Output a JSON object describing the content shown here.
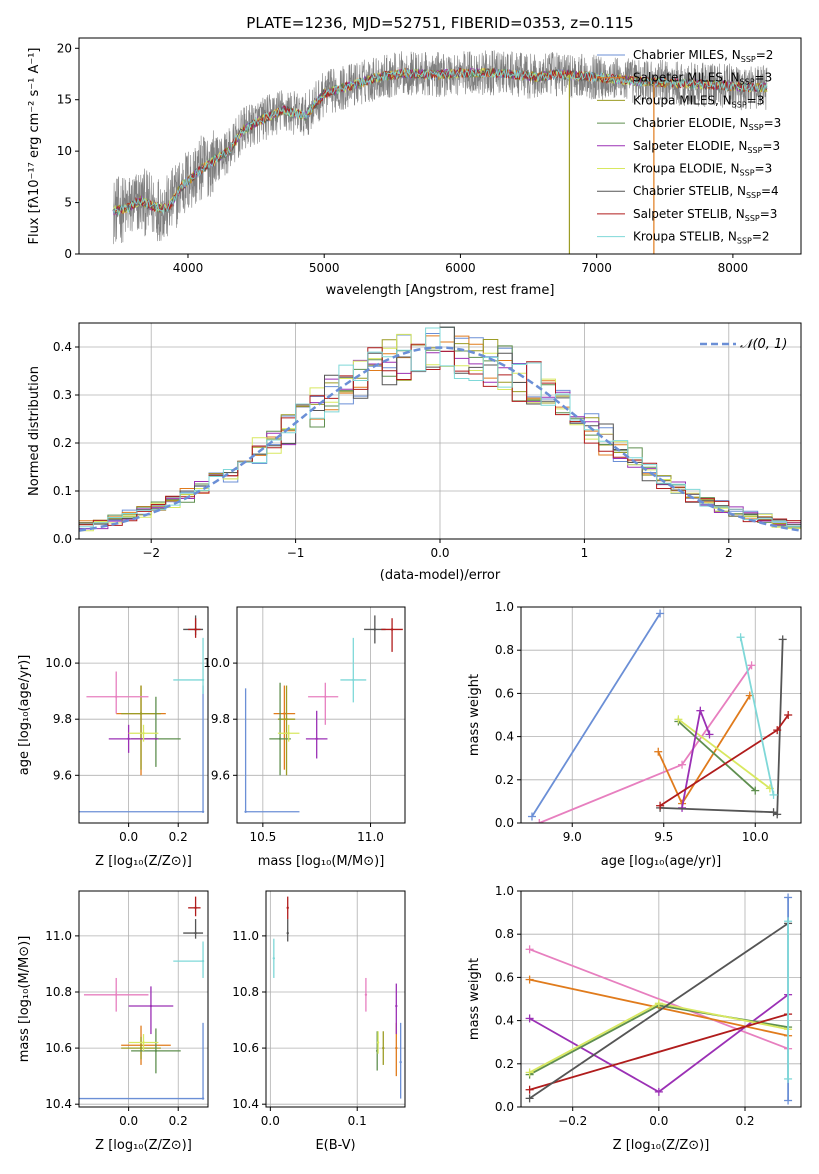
{
  "figure": {
    "title": "PLATE=1236, MJD=52751, FIBERID=0353, z=0.115",
    "colors": {
      "Chabrier MILES": "#6b8fd6",
      "Salpeter MILES": "#e07b1c",
      "Kroupa MILES": "#9c9c25",
      "Chabrier ELODIE": "#5f8f4f",
      "Salpeter ELODIE": "#9b30b5",
      "Kroupa ELODIE": "#d8e860",
      "Chabrier STELIB": "#555555",
      "Salpeter STELIB": "#b01c1c",
      "Kroupa STELIB": "#7fd8d8",
      "pink": "#e77fbf",
      "lime": "#b5e34d",
      "gaussian": "#6b8fd6"
    }
  },
  "chart_data": [
    {
      "id": "spectrum",
      "type": "line",
      "xlabel": "wavelength [Angstrom, rest frame]",
      "ylabel": "Flux [fλ10⁻¹⁷ erg cm⁻² s⁻¹ A⁻¹]",
      "xlim": [
        3200,
        8500
      ],
      "ylim": [
        0,
        21
      ],
      "xticks": [
        4000,
        5000,
        6000,
        7000,
        8000
      ],
      "yticks": [
        0,
        5,
        10,
        15,
        20
      ],
      "grid": false,
      "legend_position": "right",
      "legend": [
        {
          "label": "Chabrier MILES, N_SSP=2",
          "text": "Chabrier MILES, N",
          "sub": "SSP",
          "tail": "=2"
        },
        {
          "label": "Salpeter MILES, N_SSP=3",
          "text": "Salpeter MILES, N",
          "sub": "SSP",
          "tail": "=3"
        },
        {
          "label": "Kroupa MILES, N_SSP=3",
          "text": "Kroupa MILES, N",
          "sub": "SSP",
          "tail": "=3"
        },
        {
          "label": "Chabrier ELODIE, N_SSP=3",
          "text": "Chabrier ELODIE, N",
          "sub": "SSP",
          "tail": "=3"
        },
        {
          "label": "Salpeter ELODIE, N_SSP=3",
          "text": "Salpeter ELODIE, N",
          "sub": "SSP",
          "tail": "=3"
        },
        {
          "label": "Kroupa ELODIE, N_SSP=3",
          "text": "Kroupa ELODIE, N",
          "sub": "SSP",
          "tail": "=3"
        },
        {
          "label": "Chabrier STELIB, N_SSP=4",
          "text": "Chabrier STELIB, N",
          "sub": "SSP",
          "tail": "=4"
        },
        {
          "label": "Salpeter STELIB, N_SSP=3",
          "text": "Salpeter STELIB, N",
          "sub": "SSP",
          "tail": "=3"
        },
        {
          "label": "Kroupa STELIB, N_SSP=2",
          "text": "Kroupa STELIB, N",
          "sub": "SSP",
          "tail": "=2"
        }
      ],
      "continuum": [
        [
          3450,
          4.2
        ],
        [
          3550,
          4.4
        ],
        [
          3650,
          5.2
        ],
        [
          3750,
          4.6
        ],
        [
          3850,
          4.4
        ],
        [
          3950,
          6.5
        ],
        [
          4100,
          8.3
        ],
        [
          4300,
          10.0
        ],
        [
          4400,
          12.0
        ],
        [
          4500,
          12.8
        ],
        [
          4700,
          14.0
        ],
        [
          4860,
          13.4
        ],
        [
          5000,
          15.6
        ],
        [
          5200,
          16.4
        ],
        [
          5400,
          17.2
        ],
        [
          5600,
          17.6
        ],
        [
          5800,
          17.4
        ],
        [
          6000,
          17.6
        ],
        [
          6300,
          17.6
        ],
        [
          6563,
          17.2
        ],
        [
          6700,
          17.5
        ],
        [
          7000,
          17.2
        ],
        [
          7300,
          16.8
        ],
        [
          7600,
          16.6
        ],
        [
          7900,
          16.4
        ],
        [
          8100,
          16.2
        ],
        [
          8250,
          16.2
        ]
      ],
      "noise_amplitude": 2.2,
      "dropout_lines": [
        {
          "x": 6800,
          "series": "Kroupa MILES"
        },
        {
          "x": 7420,
          "series": "Salpeter MILES"
        }
      ]
    },
    {
      "id": "residuals",
      "type": "histogram",
      "xlabel": "(data-model)/error",
      "ylabel": "Normed distribution",
      "xlim": [
        -2.5,
        2.5
      ],
      "ylim": [
        0,
        0.45
      ],
      "xticks": [
        -2,
        -1,
        0,
        1,
        2
      ],
      "yticks": [
        0.0,
        0.1,
        0.2,
        0.3,
        0.4
      ],
      "grid": true,
      "legend": [
        "𝒩(0, 1)"
      ],
      "legend_position": "top-right",
      "gaussian": {
        "mean": 0,
        "sigma": 1
      },
      "bin_width": 0.1
    },
    {
      "id": "age_vs_Z",
      "type": "errorbar",
      "xlabel": "Z [log₁₀(Z/Z⊙)]",
      "ylabel": "age  [log₁₀(age/yr)]",
      "xlim": [
        -0.2,
        0.32
      ],
      "ylim": [
        9.43,
        10.2
      ],
      "xticks": [
        0.0,
        0.2
      ],
      "yticks": [
        9.6,
        9.8,
        10.0
      ],
      "grid": true,
      "points": [
        {
          "s": "Chabrier MILES",
          "x": 0.3,
          "y": 9.47,
          "xe": [
            0.5,
            0.0
          ],
          "ye": [
            0.0,
            0.45
          ]
        },
        {
          "s": "Salpeter MILES",
          "x": 0.05,
          "y": 9.82,
          "xe": [
            0.1,
            0.1
          ],
          "ye": [
            0.22,
            0.1
          ]
        },
        {
          "s": "Kroupa MILES",
          "x": 0.05,
          "y": 9.82,
          "xe": [
            0.08,
            0.08
          ],
          "ye": [
            0.2,
            0.1
          ]
        },
        {
          "s": "Chabrier ELODIE",
          "x": 0.11,
          "y": 9.73,
          "xe": [
            0.1,
            0.1
          ],
          "ye": [
            0.1,
            0.15
          ]
        },
        {
          "s": "Salpeter ELODIE",
          "x": 0.0,
          "y": 9.73,
          "xe": [
            0.08,
            0.12
          ],
          "ye": [
            0.05,
            0.05
          ]
        },
        {
          "s": "Kroupa ELODIE",
          "x": 0.06,
          "y": 9.75,
          "xe": [
            0.06,
            0.06
          ],
          "ye": [
            0.03,
            0.03
          ]
        },
        {
          "s": "Chabrier STELIB",
          "x": 0.27,
          "y": 10.12,
          "xe": [
            0.05,
            0.03
          ],
          "ye": [
            0.02,
            0.05
          ]
        },
        {
          "s": "Salpeter STELIB",
          "x": 0.27,
          "y": 10.12,
          "xe": [
            0.03,
            0.02
          ],
          "ye": [
            0.03,
            0.04
          ]
        },
        {
          "s": "Kroupa STELIB",
          "x": 0.3,
          "y": 9.94,
          "xe": [
            0.12,
            0.0
          ],
          "ye": [
            0.05,
            0.15
          ]
        },
        {
          "s": "pink",
          "x": -0.05,
          "y": 9.88,
          "xe": [
            0.12,
            0.13
          ],
          "ye": [
            0.06,
            0.09
          ]
        }
      ]
    },
    {
      "id": "age_vs_mass",
      "type": "errorbar",
      "xlabel": "mass [log₁₀(M/M⊙)]",
      "ylabel": "",
      "xlim": [
        10.38,
        11.16
      ],
      "ylim": [
        9.43,
        10.2
      ],
      "xticks": [
        10.5,
        11.0
      ],
      "yticks": [
        9.6,
        9.8,
        10.0
      ],
      "grid": true,
      "points": [
        {
          "s": "Chabrier MILES",
          "x": 10.42,
          "y": 9.47,
          "xe": [
            0.0,
            0.25
          ],
          "ye": [
            0.0,
            0.44
          ]
        },
        {
          "s": "Salpeter MILES",
          "x": 10.6,
          "y": 9.82,
          "xe": [
            0.05,
            0.05
          ],
          "ye": [
            0.2,
            0.1
          ]
        },
        {
          "s": "Kroupa MILES",
          "x": 10.61,
          "y": 9.8,
          "xe": [
            0.04,
            0.04
          ],
          "ye": [
            0.2,
            0.12
          ]
        },
        {
          "s": "Chabrier ELODIE",
          "x": 10.58,
          "y": 9.73,
          "xe": [
            0.05,
            0.05
          ],
          "ye": [
            0.13,
            0.2
          ]
        },
        {
          "s": "Salpeter ELODIE",
          "x": 10.75,
          "y": 9.73,
          "xe": [
            0.05,
            0.05
          ],
          "ye": [
            0.07,
            0.1
          ]
        },
        {
          "s": "Kroupa ELODIE",
          "x": 10.62,
          "y": 9.75,
          "xe": [
            0.05,
            0.05
          ],
          "ye": [
            0.03,
            0.03
          ]
        },
        {
          "s": "Chabrier STELIB",
          "x": 11.02,
          "y": 10.12,
          "xe": [
            0.05,
            0.05
          ],
          "ye": [
            0.05,
            0.05
          ]
        },
        {
          "s": "Salpeter STELIB",
          "x": 11.1,
          "y": 10.12,
          "xe": [
            0.05,
            0.05
          ],
          "ye": [
            0.08,
            0.04
          ]
        },
        {
          "s": "Kroupa STELIB",
          "x": 10.92,
          "y": 9.94,
          "xe": [
            0.06,
            0.06
          ],
          "ye": [
            0.08,
            0.15
          ]
        },
        {
          "s": "pink",
          "x": 10.79,
          "y": 9.88,
          "xe": [
            0.08,
            0.06
          ],
          "ye": [
            0.1,
            0.05
          ]
        }
      ]
    },
    {
      "id": "weight_vs_age",
      "type": "line",
      "xlabel": "age  [log₁₀(age/yr)]",
      "ylabel": "mass weight",
      "xlim": [
        8.72,
        10.25
      ],
      "ylim": [
        0,
        1
      ],
      "xticks": [
        9.0,
        9.5,
        10.0
      ],
      "yticks": [
        0.0,
        0.2,
        0.4,
        0.6,
        0.8,
        1.0
      ],
      "grid": true,
      "series": [
        {
          "s": "Chabrier MILES",
          "x": [
            8.78,
            9.48
          ],
          "y": [
            0.03,
            0.97
          ]
        },
        {
          "s": "pink",
          "x": [
            8.82,
            9.6,
            9.98
          ],
          "y": [
            0.0,
            0.27,
            0.73
          ]
        },
        {
          "s": "Salpeter MILES",
          "x": [
            9.47,
            9.6,
            9.97
          ],
          "y": [
            0.33,
            0.09,
            0.59
          ]
        },
        {
          "s": "Chabrier ELODIE",
          "x": [
            9.58,
            10.0
          ],
          "y": [
            0.47,
            0.15
          ]
        },
        {
          "s": "Kroupa ELODIE",
          "x": [
            9.58,
            10.08
          ],
          "y": [
            0.48,
            0.16
          ]
        },
        {
          "s": "Salpeter ELODIE",
          "x": [
            9.6,
            9.7,
            9.75
          ],
          "y": [
            0.07,
            0.52,
            0.41
          ]
        },
        {
          "s": "Chabrier STELIB",
          "x": [
            9.48,
            10.1,
            10.12,
            10.15
          ],
          "y": [
            0.07,
            0.05,
            0.04,
            0.85
          ]
        },
        {
          "s": "Salpeter STELIB",
          "x": [
            9.48,
            10.12,
            10.18
          ],
          "y": [
            0.08,
            0.43,
            0.5
          ]
        },
        {
          "s": "Kroupa STELIB",
          "x": [
            9.92,
            10.1
          ],
          "y": [
            0.86,
            0.13
          ]
        }
      ]
    },
    {
      "id": "mass_vs_Z",
      "type": "errorbar",
      "xlabel": "Z [log₁₀(Z/Z⊙)]",
      "ylabel": "mass [log₁₀(M/M⊙)]",
      "xlim": [
        -0.2,
        0.32
      ],
      "ylim": [
        10.39,
        11.16
      ],
      "xticks": [
        0.0,
        0.2
      ],
      "yticks": [
        10.4,
        10.6,
        10.8,
        11.0
      ],
      "grid": true,
      "points": [
        {
          "s": "Chabrier MILES",
          "x": 0.3,
          "y": 10.42,
          "xe": [
            0.5,
            0.0
          ],
          "ye": [
            0.0,
            0.27
          ]
        },
        {
          "s": "Salpeter MILES",
          "x": 0.05,
          "y": 10.61,
          "xe": [
            0.08,
            0.12
          ],
          "ye": [
            0.07,
            0.07
          ]
        },
        {
          "s": "Kroupa MILES",
          "x": 0.05,
          "y": 10.6,
          "xe": [
            0.08,
            0.08
          ],
          "ye": [
            0.04,
            0.04
          ]
        },
        {
          "s": "Chabrier ELODIE",
          "x": 0.11,
          "y": 10.59,
          "xe": [
            0.1,
            0.1
          ],
          "ye": [
            0.08,
            0.08
          ]
        },
        {
          "s": "Salpeter ELODIE",
          "x": 0.09,
          "y": 10.75,
          "xe": [
            0.09,
            0.09
          ],
          "ye": [
            0.1,
            0.07
          ]
        },
        {
          "s": "Kroupa ELODIE",
          "x": 0.06,
          "y": 10.62,
          "xe": [
            0.06,
            0.06
          ],
          "ye": [
            0.03,
            0.03
          ]
        },
        {
          "s": "Chabrier STELIB",
          "x": 0.27,
          "y": 11.01,
          "xe": [
            0.05,
            0.03
          ],
          "ye": [
            0.02,
            0.05
          ]
        },
        {
          "s": "Salpeter STELIB",
          "x": 0.27,
          "y": 11.1,
          "xe": [
            0.03,
            0.02
          ],
          "ye": [
            0.03,
            0.04
          ]
        },
        {
          "s": "Kroupa STELIB",
          "x": 0.3,
          "y": 10.91,
          "xe": [
            0.12,
            0.0
          ],
          "ye": [
            0.06,
            0.07
          ]
        },
        {
          "s": "pink",
          "x": -0.05,
          "y": 10.79,
          "xe": [
            0.13,
            0.13
          ],
          "ye": [
            0.06,
            0.06
          ]
        }
      ]
    },
    {
      "id": "mass_vs_ebv",
      "type": "errorbar",
      "xlabel": "E(B-V)",
      "ylabel": "",
      "xlim": [
        -0.005,
        0.155
      ],
      "ylim": [
        10.39,
        11.16
      ],
      "xticks": [
        0.0,
        0.1
      ],
      "yticks": [
        10.4,
        10.6,
        10.8,
        11.0
      ],
      "grid": true,
      "points": [
        {
          "s": "Chabrier MILES",
          "x": 0.15,
          "y": 10.55,
          "xe": [
            0,
            0
          ],
          "ye": [
            0.13,
            0.14
          ]
        },
        {
          "s": "Salpeter MILES",
          "x": 0.145,
          "y": 10.6,
          "xe": [
            0,
            0
          ],
          "ye": [
            0.1,
            0.09
          ]
        },
        {
          "s": "Kroupa MILES",
          "x": 0.13,
          "y": 10.6,
          "xe": [
            0,
            0
          ],
          "ye": [
            0.06,
            0.06
          ]
        },
        {
          "s": "Chabrier ELODIE",
          "x": 0.123,
          "y": 10.59,
          "xe": [
            0,
            0
          ],
          "ye": [
            0.07,
            0.07
          ]
        },
        {
          "s": "Salpeter ELODIE",
          "x": 0.145,
          "y": 10.75,
          "xe": [
            0,
            0
          ],
          "ye": [
            0.1,
            0.08
          ]
        },
        {
          "s": "Kroupa ELODIE",
          "x": 0.124,
          "y": 10.62,
          "xe": [
            0,
            0
          ],
          "ye": [
            0.04,
            0.04
          ]
        },
        {
          "s": "Chabrier STELIB",
          "x": 0.02,
          "y": 11.01,
          "xe": [
            0,
            0
          ],
          "ye": [
            0.03,
            0.05
          ]
        },
        {
          "s": "Salpeter STELIB",
          "x": 0.02,
          "y": 11.1,
          "xe": [
            0,
            0
          ],
          "ye": [
            0.04,
            0.04
          ]
        },
        {
          "s": "Kroupa STELIB",
          "x": 0.004,
          "y": 10.92,
          "xe": [
            0,
            0
          ],
          "ye": [
            0.07,
            0.07
          ]
        },
        {
          "s": "pink",
          "x": 0.11,
          "y": 10.79,
          "xe": [
            0,
            0
          ],
          "ye": [
            0.06,
            0.06
          ]
        }
      ]
    },
    {
      "id": "weight_vs_Z",
      "type": "line",
      "xlabel": "Z [log₁₀(Z/Z⊙)]",
      "ylabel": "mass weight",
      "xlim": [
        -0.32,
        0.33
      ],
      "ylim": [
        0,
        1
      ],
      "xticks": [
        -0.2,
        0.0,
        0.2
      ],
      "yticks": [
        0.0,
        0.2,
        0.4,
        0.6,
        0.8,
        1.0
      ],
      "grid": true,
      "series": [
        {
          "s": "pink",
          "x": [
            -0.3,
            0.3
          ],
          "y": [
            0.73,
            0.27
          ]
        },
        {
          "s": "Salpeter MILES",
          "x": [
            -0.3,
            0.3
          ],
          "y": [
            0.59,
            0.33
          ]
        },
        {
          "s": "Salpeter ELODIE",
          "x": [
            -0.3,
            0.0,
            0.3
          ],
          "y": [
            0.41,
            0.07,
            0.52
          ]
        },
        {
          "s": "Chabrier ELODIE",
          "x": [
            -0.3,
            0.0,
            0.3
          ],
          "y": [
            0.15,
            0.47,
            0.37
          ]
        },
        {
          "s": "Kroupa ELODIE",
          "x": [
            -0.3,
            0.0,
            0.3
          ],
          "y": [
            0.16,
            0.48,
            0.36
          ]
        },
        {
          "s": "Salpeter STELIB",
          "x": [
            -0.3,
            0.3
          ],
          "y": [
            0.08,
            0.43
          ]
        },
        {
          "s": "Chabrier STELIB",
          "x": [
            -0.3,
            0.3
          ],
          "y": [
            0.04,
            0.85
          ]
        },
        {
          "s": "Chabrier MILES",
          "x": [
            0.3,
            0.3
          ],
          "y": [
            0.03,
            0.97
          ]
        },
        {
          "s": "Kroupa STELIB",
          "x": [
            0.3,
            0.3
          ],
          "y": [
            0.13,
            0.86
          ]
        }
      ]
    }
  ]
}
